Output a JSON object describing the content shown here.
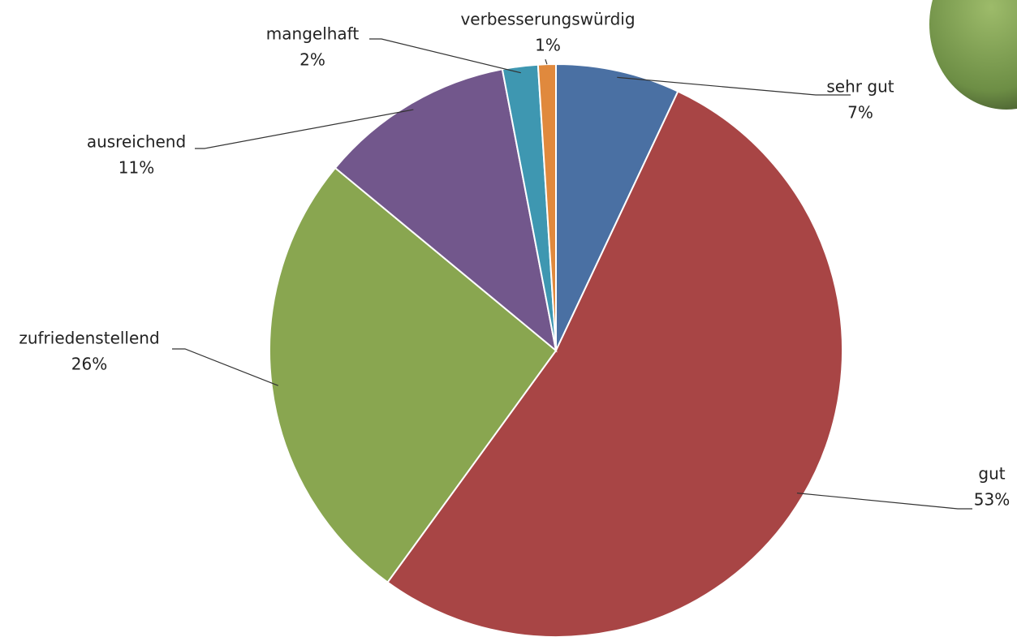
{
  "chart_data": {
    "type": "pie",
    "categories": [
      "sehr gut",
      "gut",
      "zufriedenstellend",
      "ausreichend",
      "mangelhaft",
      "verbesserungswürdig"
    ],
    "values": [
      7,
      53,
      26,
      11,
      2,
      1
    ],
    "value_labels": [
      "7%",
      "53%",
      "26%",
      "11%",
      "2%",
      "1%"
    ],
    "colors": [
      "#4a70a3",
      "#a84545",
      "#89a650",
      "#72578c",
      "#3e97b1",
      "#e0893d"
    ]
  }
}
